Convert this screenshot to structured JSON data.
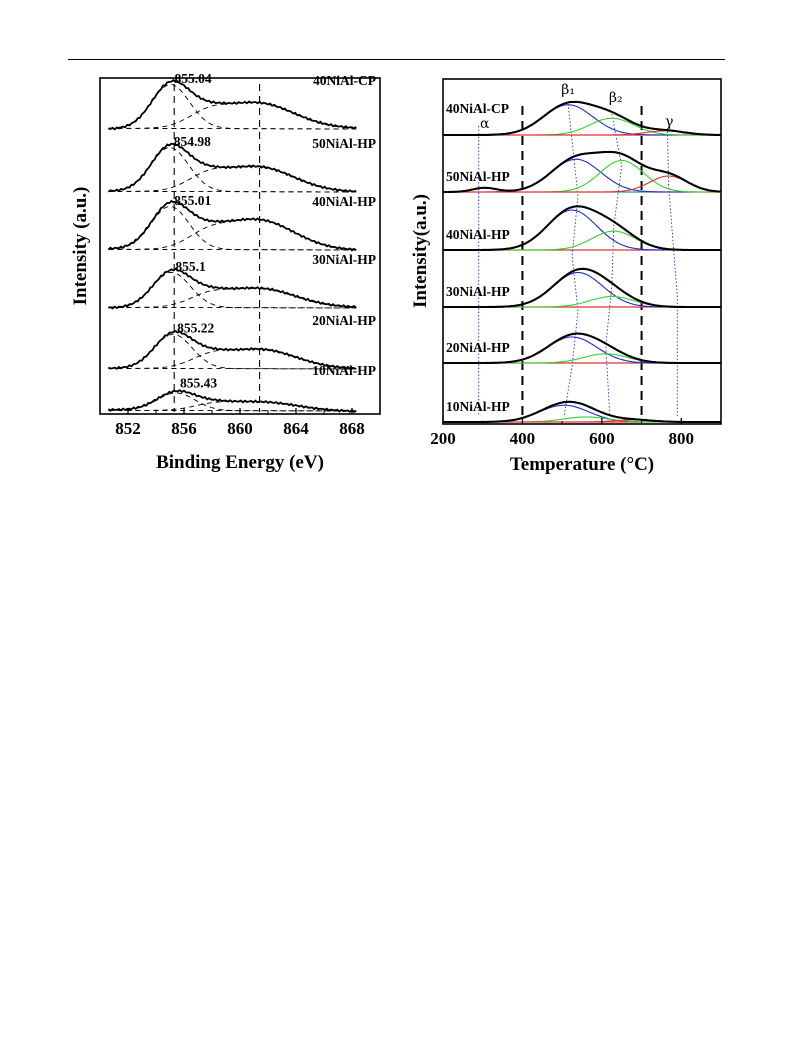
{
  "chart_data": [
    {
      "panel": "left",
      "type": "line",
      "xlabel": "Binding Energy (eV)",
      "ylabel": "Intensity (a.u.)",
      "xlim": [
        850,
        870
      ],
      "xticks": [
        852,
        856,
        860,
        864,
        868
      ],
      "reference_lines_x": [
        855.3,
        861.4
      ],
      "series": [
        {
          "name": "40NiAl-CP",
          "peak_label": "855.04",
          "main_peak": 855.04,
          "main_height": 1.0,
          "sat_peak": 861.2,
          "sat_height": 0.58
        },
        {
          "name": "50NiAl-HP",
          "peak_label": "854.98",
          "main_peak": 854.98,
          "main_height": 1.0,
          "sat_peak": 861.2,
          "sat_height": 0.58
        },
        {
          "name": "40NiAl-HP",
          "peak_label": "855.01",
          "main_peak": 855.01,
          "main_height": 0.98,
          "sat_peak": 861.2,
          "sat_height": 0.68
        },
        {
          "name": "30NiAl-HP",
          "peak_label": "855.1",
          "main_peak": 855.1,
          "main_height": 0.8,
          "sat_peak": 861.3,
          "sat_height": 0.43
        },
        {
          "name": "20NiAl-HP",
          "peak_label": "855.22",
          "main_peak": 855.22,
          "main_height": 0.78,
          "sat_peak": 861.4,
          "sat_height": 0.45
        },
        {
          "name": "10NiAl-HP",
          "peak_label": "855.43",
          "main_peak": 855.43,
          "main_height": 0.4,
          "sat_peak": 861.5,
          "sat_height": 0.2
        }
      ]
    },
    {
      "panel": "right",
      "type": "line",
      "xlabel": "Temperature (°C)",
      "ylabel": "Intensity(a.u.)",
      "xlim": [
        200,
        900
      ],
      "xticks": [
        200,
        400,
        600,
        800
      ],
      "region_labels": [
        {
          "text": "α",
          "x": 305
        },
        {
          "text": "β₁",
          "x": 515
        },
        {
          "text": "β₂",
          "x": 635
        },
        {
          "text": "γ",
          "x": 770
        }
      ],
      "boundaries": [
        400,
        700
      ],
      "series": [
        {
          "name": "40NiAl-CP",
          "peaks": [
            {
              "center": 515,
              "height": 0.72,
              "color": "#1f2fd0"
            },
            {
              "center": 625,
              "height": 0.4,
              "color": "#2bd62b"
            },
            {
              "center": 760,
              "height": 0.1,
              "color": "#e03030"
            }
          ]
        },
        {
          "name": "50NiAl-HP",
          "peaks": [
            {
              "center": 305,
              "height": 0.1,
              "color": "#19a0a8"
            },
            {
              "center": 535,
              "height": 0.78,
              "color": "#1f2fd0"
            },
            {
              "center": 650,
              "height": 0.75,
              "color": "#2bd62b"
            },
            {
              "center": 768,
              "height": 0.38,
              "color": "#e03030"
            }
          ]
        },
        {
          "name": "40NiAl-HP",
          "peaks": [
            {
              "center": 525,
              "height": 0.95,
              "color": "#1f2fd0"
            },
            {
              "center": 630,
              "height": 0.45,
              "color": "#2bd62b"
            }
          ]
        },
        {
          "name": "30NiAl-HP",
          "peaks": [
            {
              "center": 540,
              "height": 0.82,
              "color": "#1f2fd0"
            },
            {
              "center": 625,
              "height": 0.25,
              "color": "#2bd62b"
            }
          ]
        },
        {
          "name": "20NiAl-HP",
          "peaks": [
            {
              "center": 525,
              "height": 0.62,
              "color": "#1f2fd0"
            },
            {
              "center": 610,
              "height": 0.22,
              "color": "#2bd62b"
            }
          ]
        },
        {
          "name": "10NiAl-HP",
          "peaks": [
            {
              "center": 505,
              "height": 0.4,
              "color": "#1f2fd0"
            },
            {
              "center": 560,
              "height": 0.12,
              "color": "#2bd62b"
            },
            {
              "center": 680,
              "height": 0.05,
              "color": "#e03030"
            }
          ]
        }
      ]
    }
  ]
}
